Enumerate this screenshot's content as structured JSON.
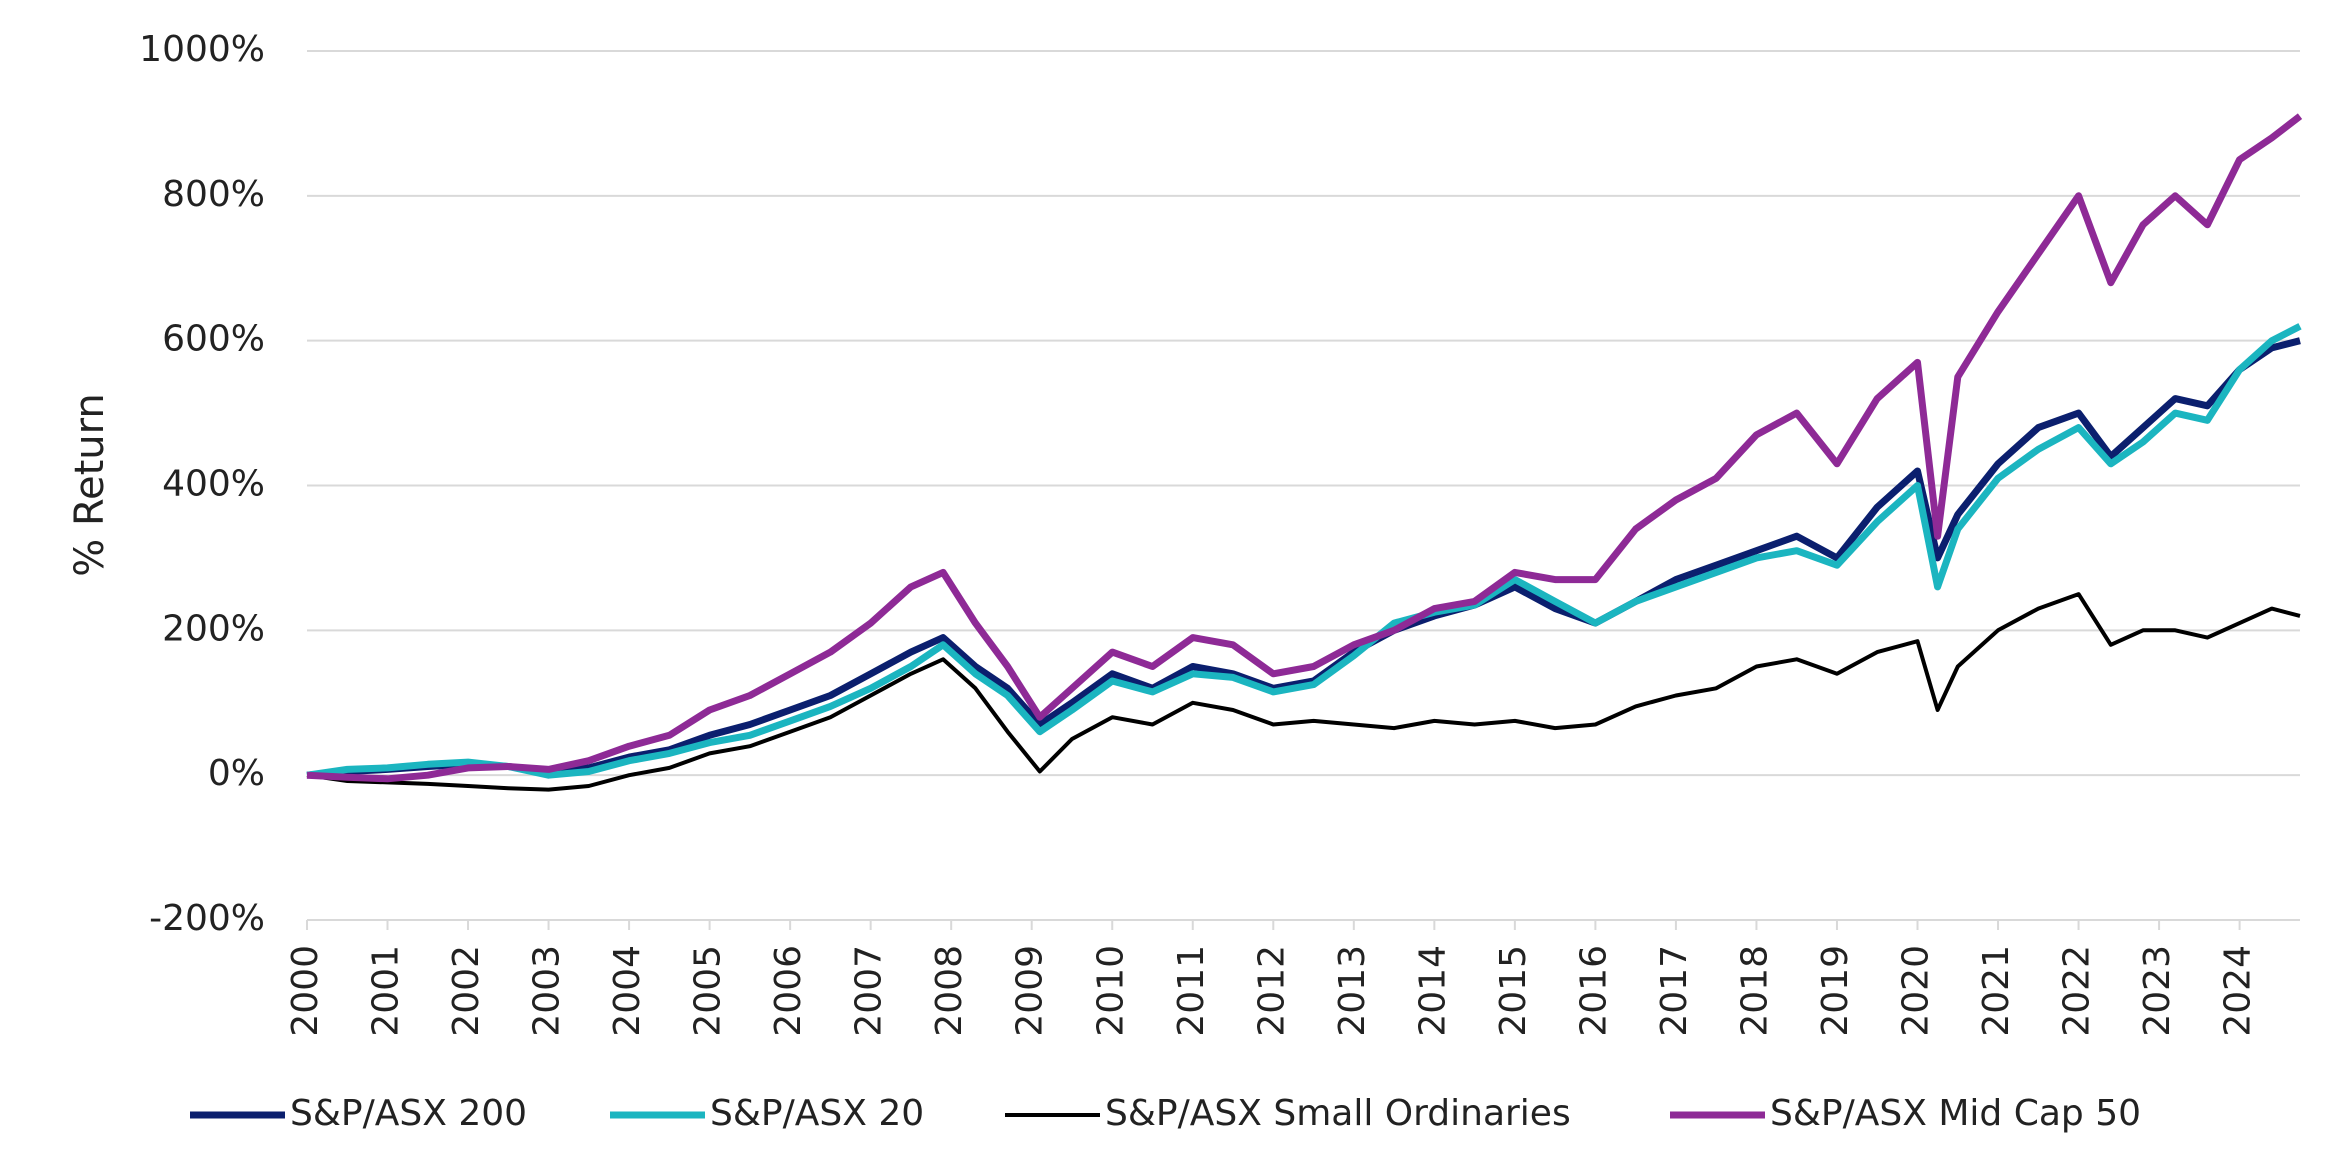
{
  "chart_data": {
    "type": "line",
    "y_label": "% Return",
    "ylim": [
      -200,
      1000
    ],
    "yticks": [
      {
        "value": -200,
        "label": "-200%"
      },
      {
        "value": 0,
        "label": "0%"
      },
      {
        "value": 200,
        "label": "200%"
      },
      {
        "value": 400,
        "label": "400%"
      },
      {
        "value": 600,
        "label": "600%"
      },
      {
        "value": 800,
        "label": "800%"
      },
      {
        "value": 1000,
        "label": "1000%"
      }
    ],
    "xlim": [
      2000,
      2024.75
    ],
    "xticks": [
      2000,
      2001,
      2002,
      2003,
      2004,
      2005,
      2006,
      2007,
      2008,
      2009,
      2010,
      2011,
      2012,
      2013,
      2014,
      2015,
      2016,
      2017,
      2018,
      2019,
      2020,
      2021,
      2022,
      2023,
      2024
    ],
    "grid": true,
    "legend": "bottom",
    "x": [
      2000,
      2000.5,
      2001,
      2001.5,
      2002,
      2002.5,
      2003,
      2003.5,
      2004,
      2004.5,
      2005,
      2005.5,
      2006,
      2006.5,
      2007,
      2007.5,
      2007.9,
      2008.3,
      2008.7,
      2009.1,
      2009.5,
      2010,
      2010.5,
      2011,
      2011.5,
      2012,
      2012.5,
      2013,
      2013.5,
      2014,
      2014.5,
      2015,
      2015.5,
      2016,
      2016.5,
      2017,
      2017.5,
      2018,
      2018.5,
      2019,
      2019.5,
      2020,
      2020.25,
      2020.5,
      2021,
      2021.5,
      2022,
      2022.4,
      2022.8,
      2023.2,
      2023.6,
      2024,
      2024.4,
      2024.75
    ],
    "series": [
      {
        "name": "S&P/ASX 200",
        "color": "#0b1f6e",
        "values": [
          0,
          5,
          8,
          12,
          15,
          12,
          5,
          10,
          25,
          35,
          55,
          70,
          90,
          110,
          140,
          170,
          190,
          150,
          120,
          70,
          100,
          140,
          120,
          150,
          140,
          120,
          130,
          170,
          200,
          220,
          235,
          260,
          230,
          210,
          240,
          270,
          290,
          310,
          330,
          300,
          370,
          420,
          300,
          360,
          430,
          480,
          500,
          440,
          480,
          520,
          510,
          560,
          590,
          600
        ]
      },
      {
        "name": "S&P/ASX 20",
        "color": "#1bb5c0",
        "values": [
          0,
          8,
          10,
          15,
          18,
          12,
          0,
          5,
          20,
          30,
          45,
          55,
          75,
          95,
          120,
          150,
          180,
          140,
          110,
          60,
          90,
          130,
          115,
          140,
          135,
          115,
          125,
          165,
          210,
          225,
          235,
          270,
          240,
          210,
          240,
          260,
          280,
          300,
          310,
          290,
          350,
          400,
          260,
          340,
          410,
          450,
          480,
          430,
          460,
          500,
          490,
          560,
          600,
          620
        ]
      },
      {
        "name": "S&P/ASX Small Ordinaries",
        "color": "#000000",
        "values": [
          0,
          -8,
          -10,
          -12,
          -15,
          -18,
          -20,
          -15,
          0,
          10,
          30,
          40,
          60,
          80,
          110,
          140,
          160,
          120,
          60,
          5,
          50,
          80,
          70,
          100,
          90,
          70,
          75,
          70,
          65,
          75,
          70,
          75,
          65,
          70,
          95,
          110,
          120,
          150,
          160,
          140,
          170,
          185,
          90,
          150,
          200,
          230,
          250,
          180,
          200,
          200,
          190,
          210,
          230,
          220
        ]
      },
      {
        "name": "S&P/ASX Mid Cap 50",
        "color": "#8e2a96",
        "values": [
          0,
          -3,
          -5,
          0,
          10,
          12,
          8,
          20,
          40,
          55,
          90,
          110,
          140,
          170,
          210,
          260,
          280,
          210,
          150,
          80,
          120,
          170,
          150,
          190,
          180,
          140,
          150,
          180,
          200,
          230,
          240,
          280,
          270,
          270,
          340,
          380,
          410,
          470,
          500,
          430,
          520,
          570,
          330,
          550,
          640,
          720,
          800,
          680,
          760,
          800,
          760,
          850,
          880,
          910
        ]
      }
    ]
  }
}
